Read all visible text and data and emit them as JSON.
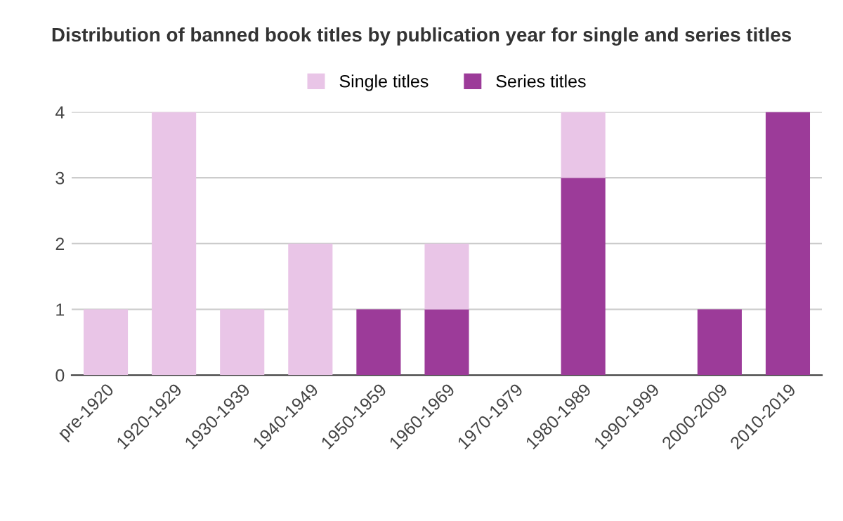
{
  "chart_data": {
    "type": "bar",
    "title": "Distribution of banned book titles by publication year for single and series titles",
    "categories": [
      "pre-1920",
      "1920-1929",
      "1930-1939",
      "1940-1949",
      "1950-1959",
      "1960-1969",
      "1970-1979",
      "1980-1989",
      "1990-1999",
      "2000-2009",
      "2010-2019"
    ],
    "series": [
      {
        "name": "Series titles",
        "color": "#9c3b99",
        "values": [
          0,
          0,
          0,
          0,
          1,
          1,
          0,
          3,
          0,
          1,
          4
        ]
      },
      {
        "name": "Single titles",
        "color": "#e9c5e7",
        "values": [
          1,
          4,
          1,
          2,
          0,
          1,
          0,
          1,
          0,
          0,
          0
        ]
      }
    ],
    "stacked": true,
    "ylim": [
      0,
      4
    ],
    "yticks": [
      0,
      1,
      2,
      3,
      4
    ],
    "grid": "y",
    "legend": "top"
  }
}
